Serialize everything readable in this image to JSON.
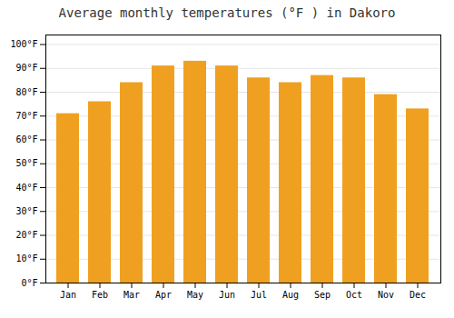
{
  "chart_data": {
    "type": "bar",
    "title": "Average monthly temperatures (°F ) in Dakoro",
    "categories": [
      "Jan",
      "Feb",
      "Mar",
      "Apr",
      "May",
      "Jun",
      "Jul",
      "Aug",
      "Sep",
      "Oct",
      "Nov",
      "Dec"
    ],
    "values": [
      71,
      76,
      84,
      91,
      93,
      91,
      86,
      84,
      87,
      86,
      79,
      73
    ],
    "color": "#F0A020",
    "ylim": [
      0,
      104
    ],
    "yticks": [
      {
        "value": 0,
        "label": "0°F"
      },
      {
        "value": 10,
        "label": "10°F"
      },
      {
        "value": 20,
        "label": "20°F"
      },
      {
        "value": 30,
        "label": "30°F"
      },
      {
        "value": 40,
        "label": "40°F"
      },
      {
        "value": 50,
        "label": "50°F"
      },
      {
        "value": 60,
        "label": "60°F"
      },
      {
        "value": 70,
        "label": "70°F"
      },
      {
        "value": 80,
        "label": "80°F"
      },
      {
        "value": 90,
        "label": "90°F"
      },
      {
        "value": 100,
        "label": "100°F"
      }
    ],
    "grid": true
  }
}
